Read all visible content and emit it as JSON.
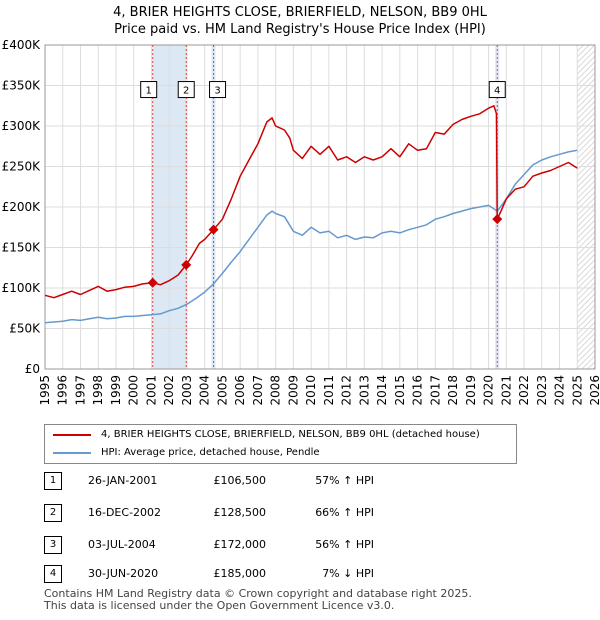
{
  "title": {
    "line1": "4, BRIER HEIGHTS CLOSE, BRIERFIELD, NELSON, BB9 0HL",
    "line2": "Price paid vs. HM Land Registry's House Price Index (HPI)"
  },
  "colors": {
    "red": "#cc0000",
    "blue": "#6699cc",
    "band": "#dde8f5",
    "grid": "#dddddd",
    "marker_line": "#dd4444"
  },
  "legend": {
    "red_label": "4, BRIER HEIGHTS CLOSE, BRIERFIELD, NELSON, BB9 0HL (detached house)",
    "blue_label": "HPI: Average price, detached house, Pendle"
  },
  "transactions": [
    {
      "num": "1",
      "date": "26-JAN-2001",
      "price": "£106,500",
      "delta": "57% ↑ HPI"
    },
    {
      "num": "2",
      "date": "16-DEC-2002",
      "price": "£128,500",
      "delta": "66% ↑ HPI"
    },
    {
      "num": "3",
      "date": "03-JUL-2004",
      "price": "£172,000",
      "delta": "56% ↑ HPI"
    },
    {
      "num": "4",
      "date": "30-JUN-2020",
      "price": "£185,000",
      "delta": "7% ↓ HPI"
    }
  ],
  "footer": {
    "line1": "Contains HM Land Registry data © Crown copyright and database right 2025.",
    "line2": "This data is licensed under the Open Government Licence v3.0."
  },
  "chart_data": {
    "type": "line",
    "xlim": [
      1995,
      2026
    ],
    "ylim": [
      0,
      400000
    ],
    "x_ticks": [
      1995,
      1996,
      1997,
      1998,
      1999,
      2000,
      2001,
      2002,
      2003,
      2004,
      2005,
      2006,
      2007,
      2008,
      2009,
      2010,
      2011,
      2012,
      2013,
      2014,
      2015,
      2016,
      2017,
      2018,
      2019,
      2020,
      2021,
      2022,
      2023,
      2024,
      2025,
      2026
    ],
    "y_ticks": [
      0,
      50000,
      100000,
      150000,
      200000,
      250000,
      300000,
      350000,
      400000
    ],
    "y_tick_labels": [
      "£0",
      "£50K",
      "£100K",
      "£150K",
      "£200K",
      "£250K",
      "£300K",
      "£350K",
      "£400K"
    ],
    "series": [
      {
        "name": "4, BRIER HEIGHTS CLOSE, BRIERFIELD, NELSON, BB9 0HL (detached house)",
        "points": [
          [
            1995.0,
            91000
          ],
          [
            1995.5,
            88000
          ],
          [
            1996.0,
            92000
          ],
          [
            1996.5,
            96000
          ],
          [
            1997.0,
            92000
          ],
          [
            1997.5,
            97000
          ],
          [
            1998.0,
            102000
          ],
          [
            1998.5,
            96000
          ],
          [
            1999.0,
            98000
          ],
          [
            1999.5,
            101000
          ],
          [
            2000.0,
            102000
          ],
          [
            2000.5,
            105000
          ],
          [
            2001.07,
            106500
          ],
          [
            2001.5,
            104000
          ],
          [
            2002.0,
            109000
          ],
          [
            2002.5,
            116000
          ],
          [
            2002.96,
            128500
          ],
          [
            2003.3,
            140000
          ],
          [
            2003.7,
            155000
          ],
          [
            2004.0,
            160000
          ],
          [
            2004.5,
            172000
          ],
          [
            2005.0,
            185000
          ],
          [
            2005.5,
            210000
          ],
          [
            2006.0,
            238000
          ],
          [
            2006.5,
            258000
          ],
          [
            2007.0,
            278000
          ],
          [
            2007.5,
            305000
          ],
          [
            2007.8,
            310000
          ],
          [
            2008.0,
            300000
          ],
          [
            2008.5,
            295000
          ],
          [
            2008.8,
            285000
          ],
          [
            2009.0,
            270000
          ],
          [
            2009.5,
            260000
          ],
          [
            2010.0,
            275000
          ],
          [
            2010.5,
            265000
          ],
          [
            2011.0,
            275000
          ],
          [
            2011.5,
            258000
          ],
          [
            2012.0,
            262000
          ],
          [
            2012.5,
            255000
          ],
          [
            2013.0,
            262000
          ],
          [
            2013.5,
            258000
          ],
          [
            2014.0,
            262000
          ],
          [
            2014.5,
            272000
          ],
          [
            2015.0,
            262000
          ],
          [
            2015.5,
            278000
          ],
          [
            2016.0,
            270000
          ],
          [
            2016.5,
            272000
          ],
          [
            2017.0,
            292000
          ],
          [
            2017.5,
            290000
          ],
          [
            2018.0,
            302000
          ],
          [
            2018.5,
            308000
          ],
          [
            2019.0,
            312000
          ],
          [
            2019.5,
            315000
          ],
          [
            2020.0,
            322000
          ],
          [
            2020.3,
            325000
          ],
          [
            2020.45,
            315000
          ],
          [
            2020.49,
            185000
          ],
          [
            2020.7,
            195000
          ],
          [
            2021.0,
            210000
          ],
          [
            2021.5,
            222000
          ],
          [
            2022.0,
            225000
          ],
          [
            2022.5,
            238000
          ],
          [
            2023.0,
            242000
          ],
          [
            2023.5,
            245000
          ],
          [
            2024.0,
            250000
          ],
          [
            2024.5,
            255000
          ],
          [
            2025.0,
            248000
          ]
        ]
      },
      {
        "name": "HPI: Average price, detached house, Pendle",
        "points": [
          [
            1995.0,
            57000
          ],
          [
            1995.5,
            58000
          ],
          [
            1996.0,
            59000
          ],
          [
            1996.5,
            61000
          ],
          [
            1997.0,
            60000
          ],
          [
            1997.5,
            62000
          ],
          [
            1998.0,
            64000
          ],
          [
            1998.5,
            62000
          ],
          [
            1999.0,
            63000
          ],
          [
            1999.5,
            65000
          ],
          [
            2000.0,
            65000
          ],
          [
            2000.5,
            66000
          ],
          [
            2001.0,
            67000
          ],
          [
            2001.5,
            68000
          ],
          [
            2002.0,
            72000
          ],
          [
            2002.5,
            75000
          ],
          [
            2003.0,
            80000
          ],
          [
            2003.5,
            87000
          ],
          [
            2004.0,
            95000
          ],
          [
            2004.5,
            105000
          ],
          [
            2005.0,
            118000
          ],
          [
            2005.5,
            132000
          ],
          [
            2006.0,
            145000
          ],
          [
            2006.5,
            160000
          ],
          [
            2007.0,
            175000
          ],
          [
            2007.5,
            190000
          ],
          [
            2007.8,
            195000
          ],
          [
            2008.0,
            192000
          ],
          [
            2008.5,
            188000
          ],
          [
            2009.0,
            170000
          ],
          [
            2009.5,
            165000
          ],
          [
            2010.0,
            175000
          ],
          [
            2010.5,
            168000
          ],
          [
            2011.0,
            170000
          ],
          [
            2011.5,
            162000
          ],
          [
            2012.0,
            165000
          ],
          [
            2012.5,
            160000
          ],
          [
            2013.0,
            163000
          ],
          [
            2013.5,
            162000
          ],
          [
            2014.0,
            168000
          ],
          [
            2014.5,
            170000
          ],
          [
            2015.0,
            168000
          ],
          [
            2015.5,
            172000
          ],
          [
            2016.0,
            175000
          ],
          [
            2016.5,
            178000
          ],
          [
            2017.0,
            185000
          ],
          [
            2017.5,
            188000
          ],
          [
            2018.0,
            192000
          ],
          [
            2018.5,
            195000
          ],
          [
            2019.0,
            198000
          ],
          [
            2019.5,
            200000
          ],
          [
            2020.0,
            202000
          ],
          [
            2020.5,
            195000
          ],
          [
            2021.0,
            210000
          ],
          [
            2021.5,
            228000
          ],
          [
            2022.0,
            240000
          ],
          [
            2022.5,
            252000
          ],
          [
            2023.0,
            258000
          ],
          [
            2023.5,
            262000
          ],
          [
            2024.0,
            265000
          ],
          [
            2024.5,
            268000
          ],
          [
            2025.0,
            270000
          ]
        ]
      }
    ],
    "sales": [
      {
        "label": "1",
        "x": 2001.07,
        "y": 106500,
        "band_end": 2001.07
      },
      {
        "label": "2",
        "x": 2002.96,
        "y": 128500
      },
      {
        "label": "3",
        "x": 2004.5,
        "y": 172000
      },
      {
        "label": "4",
        "x": 2020.49,
        "y": 185000
      }
    ]
  }
}
